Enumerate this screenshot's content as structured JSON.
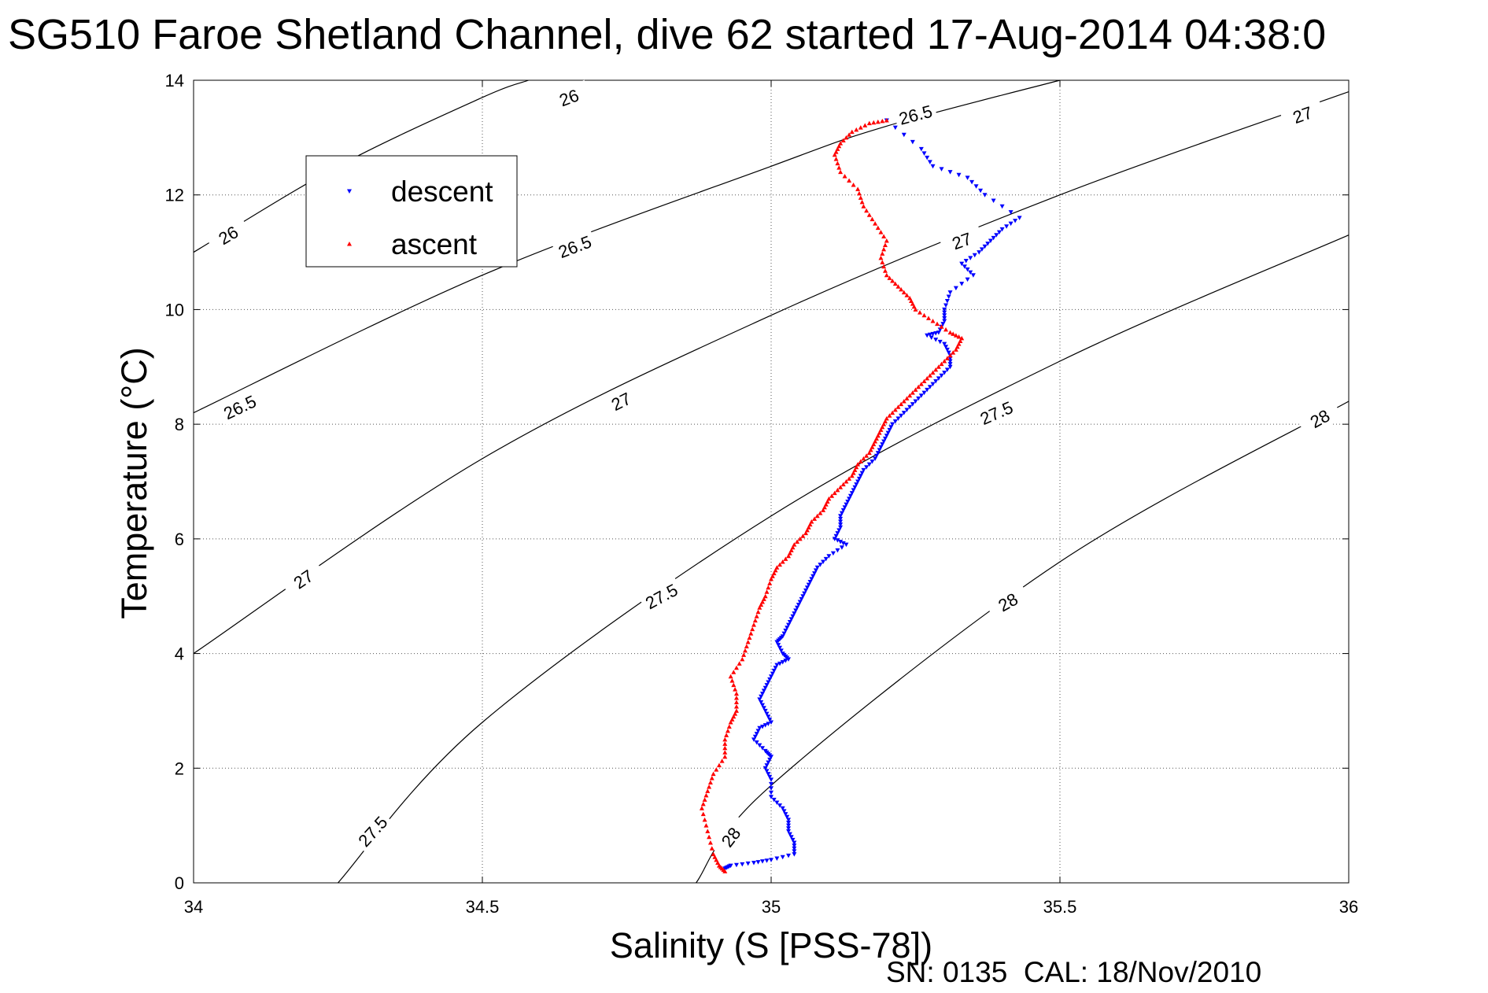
{
  "chart_data": {
    "type": "scatter",
    "title": "SG510 Faroe Shetland Channel, dive 62 started 17-Aug-2014 04:38:0",
    "xlabel": "Salinity (S [PSS-78])",
    "ylabel": "Temperature (°C)",
    "xlim": [
      34,
      36
    ],
    "ylim": [
      0,
      14
    ],
    "xticks": [
      34,
      34.5,
      35,
      35.5,
      36
    ],
    "xtick_labels": [
      "34",
      "34.5",
      "35",
      "35.5",
      "36"
    ],
    "yticks": [
      0,
      2,
      4,
      6,
      8,
      10,
      12,
      14
    ],
    "ytick_labels": [
      "0",
      "2",
      "4",
      "6",
      "8",
      "10",
      "12",
      "14"
    ],
    "grid": true,
    "legend_position": "top-left",
    "footnote": "SN: 0135  CAL: 18/Nov/2010",
    "series": [
      {
        "name": "descent",
        "color": "#0000ff",
        "marker": "triangle-down",
        "points": [
          [
            35.2,
            13.3
          ],
          [
            35.26,
            12.8
          ],
          [
            35.28,
            12.5
          ],
          [
            35.34,
            12.3
          ],
          [
            35.37,
            12.0
          ],
          [
            35.43,
            11.6
          ],
          [
            35.4,
            11.4
          ],
          [
            35.38,
            11.2
          ],
          [
            35.36,
            11.0
          ],
          [
            35.33,
            10.8
          ],
          [
            35.35,
            10.6
          ],
          [
            35.31,
            10.3
          ],
          [
            35.3,
            10.0
          ],
          [
            35.3,
            9.8
          ],
          [
            35.29,
            9.6
          ],
          [
            35.27,
            9.55
          ],
          [
            35.3,
            9.4
          ],
          [
            35.31,
            9.2
          ],
          [
            35.31,
            9.0
          ],
          [
            35.29,
            8.8
          ],
          [
            35.27,
            8.6
          ],
          [
            35.25,
            8.4
          ],
          [
            35.23,
            8.2
          ],
          [
            35.21,
            8.0
          ],
          [
            35.2,
            7.8
          ],
          [
            35.19,
            7.6
          ],
          [
            35.18,
            7.4
          ],
          [
            35.16,
            7.2
          ],
          [
            35.15,
            7.0
          ],
          [
            35.14,
            6.8
          ],
          [
            35.13,
            6.6
          ],
          [
            35.12,
            6.4
          ],
          [
            35.12,
            6.2
          ],
          [
            35.11,
            6.0
          ],
          [
            35.13,
            5.9
          ],
          [
            35.1,
            5.7
          ],
          [
            35.08,
            5.5
          ],
          [
            35.07,
            5.3
          ],
          [
            35.06,
            5.1
          ],
          [
            35.05,
            4.9
          ],
          [
            35.04,
            4.7
          ],
          [
            35.03,
            4.5
          ],
          [
            35.02,
            4.3
          ],
          [
            35.01,
            4.2
          ],
          [
            35.02,
            4.0
          ],
          [
            35.03,
            3.9
          ],
          [
            35.01,
            3.8
          ],
          [
            35.0,
            3.6
          ],
          [
            34.99,
            3.4
          ],
          [
            34.98,
            3.2
          ],
          [
            34.99,
            3.0
          ],
          [
            35.0,
            2.8
          ],
          [
            34.98,
            2.7
          ],
          [
            34.97,
            2.5
          ],
          [
            34.99,
            2.3
          ],
          [
            35.0,
            2.2
          ],
          [
            34.99,
            2.0
          ],
          [
            35.0,
            1.8
          ],
          [
            35.0,
            1.5
          ],
          [
            35.02,
            1.3
          ],
          [
            35.03,
            1.1
          ],
          [
            35.03,
            0.9
          ],
          [
            35.04,
            0.7
          ],
          [
            35.04,
            0.5
          ],
          [
            35.0,
            0.4
          ],
          [
            34.97,
            0.35
          ],
          [
            34.93,
            0.3
          ],
          [
            34.92,
            0.25
          ]
        ]
      },
      {
        "name": "ascent",
        "color": "#ff0000",
        "marker": "triangle-up",
        "points": [
          [
            34.92,
            0.2
          ],
          [
            34.91,
            0.3
          ],
          [
            34.9,
            0.5
          ],
          [
            34.89,
            0.9
          ],
          [
            34.88,
            1.3
          ],
          [
            34.89,
            1.6
          ],
          [
            34.9,
            1.9
          ],
          [
            34.92,
            2.2
          ],
          [
            34.92,
            2.5
          ],
          [
            34.93,
            2.8
          ],
          [
            34.94,
            3.0
          ],
          [
            34.94,
            3.3
          ],
          [
            34.93,
            3.6
          ],
          [
            34.95,
            3.9
          ],
          [
            34.96,
            4.2
          ],
          [
            34.97,
            4.5
          ],
          [
            34.98,
            4.8
          ],
          [
            34.99,
            5.0
          ],
          [
            35.0,
            5.3
          ],
          [
            35.01,
            5.5
          ],
          [
            35.03,
            5.7
          ],
          [
            35.04,
            5.9
          ],
          [
            35.06,
            6.1
          ],
          [
            35.07,
            6.3
          ],
          [
            35.09,
            6.5
          ],
          [
            35.1,
            6.7
          ],
          [
            35.12,
            6.9
          ],
          [
            35.14,
            7.1
          ],
          [
            35.15,
            7.3
          ],
          [
            35.17,
            7.5
          ],
          [
            35.18,
            7.7
          ],
          [
            35.19,
            7.9
          ],
          [
            35.2,
            8.1
          ],
          [
            35.22,
            8.3
          ],
          [
            35.24,
            8.5
          ],
          [
            35.26,
            8.7
          ],
          [
            35.28,
            8.9
          ],
          [
            35.3,
            9.1
          ],
          [
            35.32,
            9.3
          ],
          [
            35.33,
            9.5
          ],
          [
            35.31,
            9.6
          ],
          [
            35.28,
            9.8
          ],
          [
            35.25,
            10.0
          ],
          [
            35.24,
            10.2
          ],
          [
            35.22,
            10.4
          ],
          [
            35.2,
            10.6
          ],
          [
            35.19,
            10.9
          ],
          [
            35.2,
            11.2
          ],
          [
            35.18,
            11.5
          ],
          [
            35.16,
            11.8
          ],
          [
            35.15,
            12.1
          ],
          [
            35.12,
            12.4
          ],
          [
            35.11,
            12.7
          ],
          [
            35.12,
            12.9
          ],
          [
            35.14,
            13.1
          ],
          [
            35.17,
            13.25
          ],
          [
            35.2,
            13.3
          ]
        ]
      }
    ],
    "density_contours": [
      {
        "label": "26",
        "points": [
          [
            34.0,
            11.0
          ],
          [
            34.25,
            12.5
          ],
          [
            34.5,
            13.7
          ],
          [
            34.58,
            14.0
          ]
        ],
        "label_positions": [
          [
            34.06,
            11.3
          ],
          [
            34.65,
            13.7
          ]
        ]
      },
      {
        "label": "26.5",
        "points": [
          [
            34.0,
            8.2
          ],
          [
            34.5,
            10.6
          ],
          [
            35.0,
            12.5
          ],
          [
            35.2,
            13.2
          ],
          [
            35.5,
            14.0
          ]
        ],
        "label_positions": [
          [
            34.08,
            8.3
          ],
          [
            34.66,
            11.1
          ],
          [
            35.25,
            13.4
          ]
        ]
      },
      {
        "label": "27",
        "points": [
          [
            34.0,
            4.0
          ],
          [
            34.5,
            7.4
          ],
          [
            35.0,
            9.9
          ],
          [
            35.5,
            12.0
          ],
          [
            36.0,
            13.8
          ]
        ],
        "label_positions": [
          [
            34.19,
            5.3
          ],
          [
            34.74,
            8.4
          ],
          [
            35.33,
            11.2
          ],
          [
            35.92,
            13.4
          ]
        ]
      },
      {
        "label": "27.5",
        "points": [
          [
            34.25,
            0.0
          ],
          [
            34.5,
            2.8
          ],
          [
            35.0,
            6.4
          ],
          [
            35.5,
            9.1
          ],
          [
            36.0,
            11.3
          ]
        ],
        "label_positions": [
          [
            34.31,
            0.9
          ],
          [
            34.81,
            5.0
          ],
          [
            35.39,
            8.2
          ]
        ]
      },
      {
        "label": "28",
        "points": [
          [
            34.87,
            0.0
          ],
          [
            35.0,
            1.7
          ],
          [
            35.5,
            5.6
          ],
          [
            36.0,
            8.4
          ]
        ],
        "label_positions": [
          [
            34.93,
            0.8
          ],
          [
            35.41,
            4.9
          ],
          [
            35.95,
            8.1
          ]
        ]
      }
    ]
  }
}
